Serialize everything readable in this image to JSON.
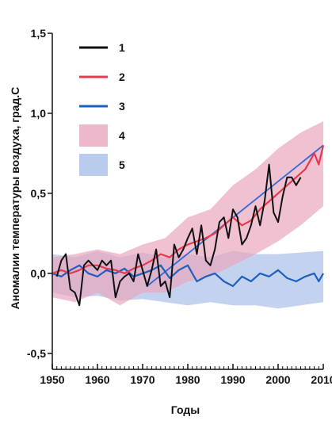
{
  "chart_data": {
    "type": "line",
    "xlabel": "Годы",
    "ylabel": "Аномалии температуры воздуха, град.С",
    "xlim": [
      1950,
      2010
    ],
    "ylim": [
      -0.6,
      1.5
    ],
    "x_ticks": [
      1950,
      1960,
      1970,
      1980,
      1990,
      2000,
      2010
    ],
    "x_tick_labels": [
      "1950",
      "1960",
      "1970",
      "1980",
      "1990",
      "2000",
      "2010"
    ],
    "y_ticks": [
      1.5,
      1.0,
      0.5,
      0.0,
      -0.5
    ],
    "y_tick_labels": [
      "1,5",
      "1,0",
      "0,5",
      "0,0",
      "-0,5"
    ],
    "legend_placement": "top-left",
    "series": [
      {
        "name": "1",
        "kind": "line",
        "color": "#111111",
        "x": [
          1951,
          1952,
          1953,
          1954,
          1955,
          1956,
          1957,
          1958,
          1959,
          1960,
          1961,
          1962,
          1963,
          1964,
          1965,
          1966,
          1967,
          1968,
          1969,
          1970,
          1971,
          1972,
          1973,
          1974,
          1975,
          1976,
          1977,
          1978,
          1979,
          1980,
          1981,
          1982,
          1983,
          1984,
          1985,
          1986,
          1987,
          1988,
          1989,
          1990,
          1991,
          1992,
          1993,
          1994,
          1995,
          1996,
          1997,
          1998,
          1999,
          2000,
          2001,
          2002,
          2003,
          2004,
          2005
        ],
        "y": [
          -0.02,
          0.08,
          0.12,
          -0.1,
          -0.12,
          -0.2,
          0.05,
          0.08,
          0.05,
          0.02,
          0.08,
          0.05,
          0.08,
          -0.15,
          -0.05,
          -0.02,
          0.0,
          -0.05,
          0.12,
          0.02,
          -0.08,
          0.02,
          0.15,
          -0.08,
          -0.05,
          -0.15,
          0.18,
          0.1,
          0.15,
          0.22,
          0.28,
          0.12,
          0.3,
          0.08,
          0.05,
          0.15,
          0.32,
          0.35,
          0.22,
          0.4,
          0.35,
          0.18,
          0.22,
          0.3,
          0.42,
          0.3,
          0.45,
          0.68,
          0.38,
          0.32,
          0.48,
          0.6,
          0.6,
          0.55,
          0.6
        ]
      },
      {
        "name": "2",
        "kind": "line",
        "color": "#e8384f",
        "x": [
          1950,
          1952,
          1954,
          1956,
          1958,
          1960,
          1962,
          1964,
          1966,
          1968,
          1970,
          1972,
          1974,
          1976,
          1978,
          1980,
          1982,
          1984,
          1986,
          1988,
          1990,
          1992,
          1994,
          1996,
          1998,
          2000,
          2002,
          2004,
          2006,
          2008,
          2009,
          2010
        ],
        "y": [
          0.0,
          0.02,
          0.0,
          0.02,
          0.05,
          0.05,
          0.03,
          0.02,
          0.0,
          0.03,
          0.05,
          0.08,
          0.12,
          0.1,
          0.15,
          0.18,
          0.2,
          0.22,
          0.25,
          0.3,
          0.35,
          0.3,
          0.33,
          0.4,
          0.45,
          0.5,
          0.55,
          0.6,
          0.65,
          0.75,
          0.68,
          0.8
        ]
      },
      {
        "name": "3",
        "kind": "line",
        "color": "#1f5fbf",
        "x": [
          1950,
          1952,
          1954,
          1956,
          1958,
          1960,
          1962,
          1964,
          1966,
          1968,
          1970,
          1972,
          1974,
          1976,
          1978,
          1980,
          1982,
          1984,
          1986,
          1988,
          1990,
          1992,
          1994,
          1996,
          1998,
          2000,
          2002,
          2004,
          2006,
          2008,
          2009,
          2010
        ],
        "y": [
          0.0,
          -0.02,
          0.02,
          0.05,
          0.0,
          -0.02,
          0.02,
          0.0,
          0.03,
          -0.02,
          0.0,
          0.02,
          0.05,
          -0.03,
          0.02,
          0.05,
          -0.05,
          -0.02,
          0.0,
          -0.05,
          -0.08,
          -0.02,
          -0.05,
          0.0,
          -0.02,
          0.02,
          -0.03,
          -0.05,
          -0.02,
          0.0,
          -0.05,
          0.0
        ]
      },
      {
        "name": "4",
        "kind": "band",
        "color": "#e8a6be",
        "x": [
          1950,
          1955,
          1960,
          1965,
          1970,
          1975,
          1980,
          1985,
          1990,
          1995,
          2000,
          2005,
          2010
        ],
        "lower": [
          -0.15,
          -0.18,
          -0.12,
          -0.2,
          -0.12,
          -0.12,
          -0.05,
          -0.02,
          0.05,
          0.12,
          0.2,
          0.3,
          0.42
        ],
        "upper": [
          0.1,
          0.12,
          0.15,
          0.12,
          0.18,
          0.22,
          0.35,
          0.4,
          0.55,
          0.65,
          0.78,
          0.88,
          0.95
        ]
      },
      {
        "name": "5",
        "kind": "band",
        "color": "#a9bfe8",
        "x": [
          1950,
          1955,
          1960,
          1965,
          1970,
          1975,
          1980,
          1985,
          1990,
          1995,
          2000,
          2005,
          2010
        ],
        "lower": [
          -0.12,
          -0.15,
          -0.14,
          -0.17,
          -0.16,
          -0.18,
          -0.2,
          -0.18,
          -0.2,
          -0.2,
          -0.22,
          -0.2,
          -0.18
        ],
        "upper": [
          0.12,
          0.1,
          0.14,
          0.1,
          0.13,
          0.1,
          0.12,
          0.1,
          0.14,
          0.12,
          0.12,
          0.13,
          0.14
        ]
      }
    ],
    "trend_line": {
      "color": "#2f6bd6",
      "x": [
        1971,
        2010
      ],
      "y": [
        -0.08,
        0.8
      ]
    }
  }
}
